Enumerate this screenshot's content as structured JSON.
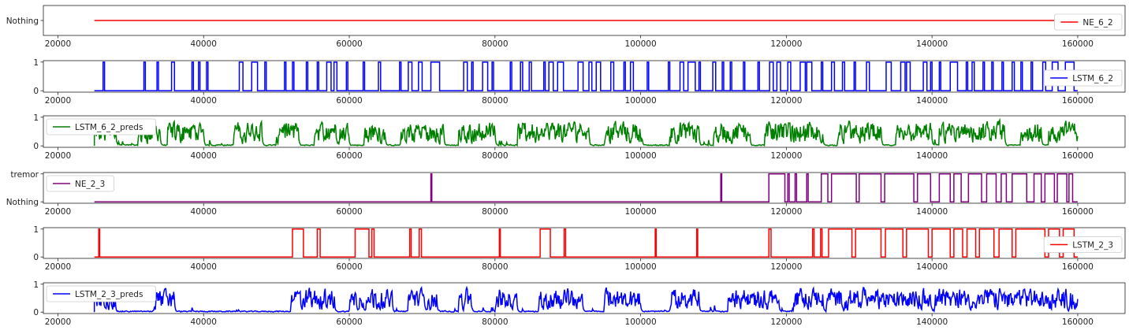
{
  "chart_data": [
    {
      "type": "line",
      "kind": "constant",
      "series": [
        {
          "name": "NE_6_2",
          "color": "#ff0000"
        }
      ],
      "x_range": [
        25000,
        160000
      ],
      "value": 0,
      "y_ticks": [
        {
          "v": 0,
          "label": "Nothing"
        }
      ],
      "ylim": [
        -0.6,
        0.6
      ],
      "xlim": [
        18000,
        166500
      ],
      "x_ticks": [
        20000,
        40000,
        60000,
        80000,
        100000,
        120000,
        140000,
        160000
      ],
      "legend": "right"
    },
    {
      "type": "line",
      "kind": "binary",
      "series": [
        {
          "name": "LSTM_6_2",
          "color": "#0000ff"
        }
      ],
      "x_range": [
        25000,
        160000
      ],
      "events": [
        [
          26200,
          26400
        ],
        [
          31800,
          32000
        ],
        [
          33600,
          33800
        ],
        [
          35600,
          36000
        ],
        [
          38400,
          38600
        ],
        [
          39300,
          39500
        ],
        [
          40400,
          40600
        ],
        [
          44900,
          45400
        ],
        [
          46600,
          47400
        ],
        [
          48400,
          48600
        ],
        [
          51100,
          51300
        ],
        [
          52200,
          52400
        ],
        [
          54100,
          54300
        ],
        [
          55600,
          55800
        ],
        [
          56900,
          57500
        ],
        [
          57900,
          58300
        ],
        [
          59600,
          59800
        ],
        [
          61900,
          62100
        ],
        [
          64000,
          64300
        ],
        [
          66900,
          67100
        ],
        [
          68100,
          68600
        ],
        [
          69500,
          70000
        ],
        [
          71200,
          72400
        ],
        [
          75700,
          76200
        ],
        [
          76800,
          77000
        ],
        [
          78300,
          79000
        ],
        [
          79600,
          79800
        ],
        [
          82100,
          82300
        ],
        [
          83500,
          83800
        ],
        [
          84700,
          85000
        ],
        [
          86700,
          86900
        ],
        [
          87400,
          88000
        ],
        [
          88600,
          89400
        ],
        [
          91400,
          92100
        ],
        [
          92900,
          93300
        ],
        [
          93900,
          94500
        ],
        [
          95900,
          96300
        ],
        [
          97700,
          97900
        ],
        [
          98600,
          99000
        ],
        [
          100900,
          101100
        ],
        [
          103800,
          104000
        ],
        [
          105400,
          105900
        ],
        [
          106500,
          107500
        ],
        [
          108000,
          108200
        ],
        [
          109900,
          110300
        ],
        [
          111200,
          111400
        ],
        [
          112300,
          112500
        ],
        [
          114100,
          114300
        ],
        [
          116100,
          116300
        ],
        [
          117700,
          118200
        ],
        [
          118700,
          119200
        ],
        [
          120200,
          120600
        ],
        [
          121900,
          122600
        ],
        [
          122800,
          123500
        ],
        [
          124800,
          125000
        ],
        [
          126200,
          126600
        ],
        [
          127700,
          128000
        ],
        [
          129300,
          129500
        ],
        [
          131000,
          131400
        ],
        [
          133700,
          134400
        ],
        [
          135700,
          136300
        ],
        [
          136500,
          137000
        ],
        [
          138800,
          139300
        ],
        [
          139800,
          140000
        ],
        [
          141000,
          141200
        ],
        [
          142500,
          143500
        ],
        [
          144700,
          144900
        ],
        [
          145500,
          145800
        ],
        [
          147000,
          147200
        ],
        [
          148200,
          148400
        ],
        [
          149600,
          149800
        ],
        [
          151000,
          151300
        ],
        [
          152200,
          152400
        ],
        [
          153600,
          153800
        ],
        [
          155200,
          155600
        ],
        [
          156500,
          157300
        ],
        [
          158300,
          159500
        ]
      ],
      "y_ticks": [
        {
          "v": 0,
          "label": "0"
        },
        {
          "v": 1,
          "label": "1"
        }
      ],
      "ylim": [
        -0.05,
        1.05
      ],
      "xlim": [
        18000,
        166500
      ],
      "x_ticks": [
        20000,
        40000,
        60000,
        80000,
        100000,
        120000,
        140000,
        160000
      ],
      "legend": "right"
    },
    {
      "type": "line",
      "kind": "noise",
      "series": [
        {
          "name": "LSTM_6_2_preds",
          "color": "#008000"
        }
      ],
      "x_range": [
        25000,
        160000
      ],
      "bursts": [
        [
          25000,
          28000
        ],
        [
          31000,
          34000
        ],
        [
          35000,
          40000
        ],
        [
          44000,
          48000
        ],
        [
          50000,
          53000
        ],
        [
          55000,
          60000
        ],
        [
          62000,
          65000
        ],
        [
          67000,
          73000
        ],
        [
          75000,
          80000
        ],
        [
          83000,
          93000
        ],
        [
          95000,
          100000
        ],
        [
          104000,
          108000
        ],
        [
          110000,
          115000
        ],
        [
          117000,
          125000
        ],
        [
          127000,
          133000
        ],
        [
          135000,
          140000
        ],
        [
          141000,
          150000
        ],
        [
          152000,
          155000
        ],
        [
          156000,
          160000
        ]
      ],
      "y_ticks": [
        {
          "v": 0,
          "label": "0"
        },
        {
          "v": 1,
          "label": "1"
        }
      ],
      "ylim": [
        -0.05,
        1.05
      ],
      "xlim": [
        18000,
        166500
      ],
      "x_ticks": [
        20000,
        40000,
        60000,
        80000,
        100000,
        120000,
        140000,
        160000
      ],
      "legend": "left"
    },
    {
      "type": "line",
      "kind": "binary",
      "series": [
        {
          "name": "NE_2_3",
          "color": "#800080"
        }
      ],
      "x_range": [
        25000,
        160000
      ],
      "events": [
        [
          71200,
          71300
        ],
        [
          111000,
          111100
        ],
        [
          117600,
          119800
        ],
        [
          120200,
          120400
        ],
        [
          121200,
          121400
        ],
        [
          122800,
          123000
        ],
        [
          124800,
          125700
        ],
        [
          126200,
          129600
        ],
        [
          130000,
          133000
        ],
        [
          133500,
          137500
        ],
        [
          138000,
          139800
        ],
        [
          141000,
          142500
        ],
        [
          143000,
          144000
        ],
        [
          145000,
          146800
        ],
        [
          147500,
          148800
        ],
        [
          149500,
          150200
        ],
        [
          151000,
          153000
        ],
        [
          154000,
          155000
        ],
        [
          155500,
          156800
        ],
        [
          157200,
          158500
        ],
        [
          158800,
          159300
        ]
      ],
      "y_ticks": [
        {
          "v": 0,
          "label": "Nothing"
        },
        {
          "v": 1,
          "label": "tremor"
        }
      ],
      "ylim": [
        -0.05,
        1.05
      ],
      "xlim": [
        18000,
        166500
      ],
      "x_ticks": [
        20000,
        40000,
        60000,
        80000,
        100000,
        120000,
        140000,
        160000
      ],
      "legend": "left"
    },
    {
      "type": "line",
      "kind": "binary",
      "series": [
        {
          "name": "LSTM_2_3",
          "color": "#ff0000"
        }
      ],
      "x_range": [
        25000,
        160000
      ],
      "events": [
        [
          25600,
          25700
        ],
        [
          52200,
          53700
        ],
        [
          55600,
          56000
        ],
        [
          60800,
          62700
        ],
        [
          63100,
          63400
        ],
        [
          68300,
          68500
        ],
        [
          69600,
          69900
        ],
        [
          80600,
          80700
        ],
        [
          86200,
          87600
        ],
        [
          89500,
          89700
        ],
        [
          102000,
          102100
        ],
        [
          107700,
          107800
        ],
        [
          117600,
          117900
        ],
        [
          123600,
          123800
        ],
        [
          124700,
          124900
        ],
        [
          125800,
          129000
        ],
        [
          129500,
          133000
        ],
        [
          133600,
          136000
        ],
        [
          136500,
          139500
        ],
        [
          140000,
          142500
        ],
        [
          143000,
          144200
        ],
        [
          144800,
          146000
        ],
        [
          146500,
          148500
        ],
        [
          149200,
          151000
        ],
        [
          151500,
          155500
        ],
        [
          156000,
          157500
        ],
        [
          158000,
          159500
        ]
      ],
      "y_ticks": [
        {
          "v": 0,
          "label": "0"
        },
        {
          "v": 1,
          "label": "1"
        }
      ],
      "ylim": [
        -0.05,
        1.05
      ],
      "xlim": [
        18000,
        166500
      ],
      "x_ticks": [
        20000,
        40000,
        60000,
        80000,
        100000,
        120000,
        140000,
        160000
      ],
      "legend": "right"
    },
    {
      "type": "line",
      "kind": "noise",
      "series": [
        {
          "name": "LSTM_2_3_preds",
          "color": "#0000ff"
        }
      ],
      "x_range": [
        25000,
        160000
      ],
      "bursts": [
        [
          25000,
          28000
        ],
        [
          33000,
          36000
        ],
        [
          52000,
          58000
        ],
        [
          60000,
          66000
        ],
        [
          68000,
          72000
        ],
        [
          75000,
          77000
        ],
        [
          80000,
          83000
        ],
        [
          86000,
          92000
        ],
        [
          95000,
          100000
        ],
        [
          104000,
          108000
        ],
        [
          112000,
          119000
        ],
        [
          121000,
          125000
        ],
        [
          125500,
          160000
        ]
      ],
      "y_ticks": [
        {
          "v": 0,
          "label": "0"
        },
        {
          "v": 1,
          "label": "1"
        }
      ],
      "ylim": [
        -0.05,
        1.05
      ],
      "xlim": [
        18000,
        166500
      ],
      "x_ticks": [
        20000,
        40000,
        60000,
        80000,
        100000,
        120000,
        140000,
        160000
      ],
      "legend": "left"
    }
  ]
}
